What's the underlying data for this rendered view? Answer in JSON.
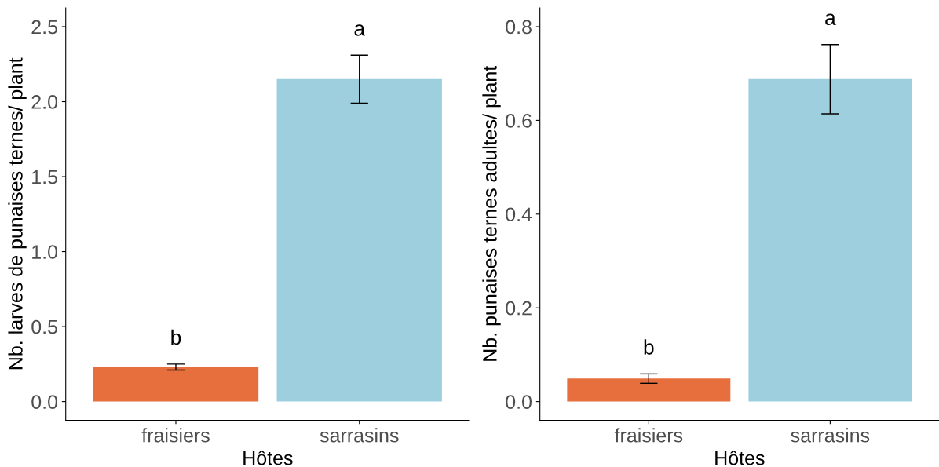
{
  "chart_data": [
    {
      "type": "bar",
      "xlabel": "Hôtes",
      "ylabel": "Nb. larves de punaises ternes/ plant",
      "categories": [
        "fraisiers",
        "sarrasins"
      ],
      "values": [
        0.23,
        2.15
      ],
      "colors": [
        "#e76f3d",
        "#9ecfdf"
      ],
      "errors": [
        0.02,
        0.16
      ],
      "ylim": [
        -0.125,
        2.625
      ],
      "yticks": [
        {
          "value": 0,
          "label": "0.0"
        },
        0.5,
        {
          "value": 1,
          "label": "1.0"
        },
        1.5,
        {
          "value": 2,
          "label": "2.0"
        },
        2.5
      ],
      "grid": false,
      "annotations": [
        "b",
        "a"
      ]
    },
    {
      "type": "bar",
      "xlabel": "Hôtes",
      "ylabel": "Nb. punaises ternes adultes/ plant",
      "categories": [
        "fraisiers",
        "sarrasins"
      ],
      "values": [
        0.049,
        0.688
      ],
      "colors": [
        "#e76f3d",
        "#9ecfdf"
      ],
      "errors": [
        0.01,
        0.074
      ],
      "ylim": [
        -0.04,
        0.84
      ],
      "yticks": [
        {
          "value": 0,
          "label": "0.0"
        },
        0.2,
        0.4,
        0.6,
        0.8
      ],
      "grid": false,
      "annotations": [
        "b",
        "a"
      ]
    }
  ]
}
